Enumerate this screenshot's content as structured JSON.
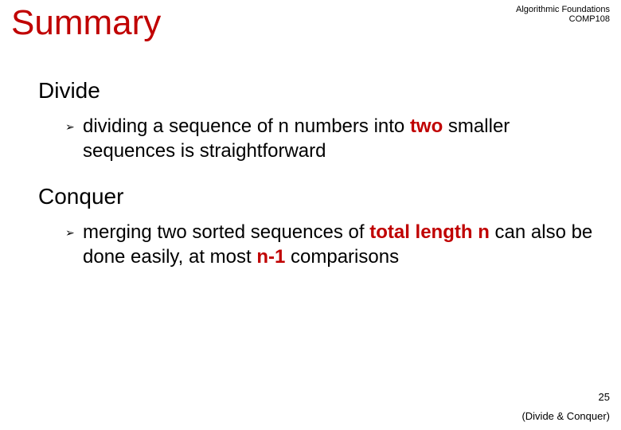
{
  "header": {
    "line1": "Algorithmic Foundations",
    "line2": "COMP108"
  },
  "title": "Summary",
  "sections": [
    {
      "heading": "Divide",
      "bullet": {
        "pre1": "dividing a sequence of n numbers into ",
        "em1": "two",
        "post1": " smaller sequences is straightforward"
      }
    },
    {
      "heading": "Conquer",
      "bullet": {
        "pre1": "merging two sorted sequences of ",
        "em1": "total length n",
        "mid1": " can also be done easily, at most ",
        "em2": "n-1",
        "post1": " comparisons"
      }
    }
  ],
  "pageNumber": "25",
  "footer": "(Divide & Conquer)",
  "colors": {
    "accent": "#c00000",
    "text": "#000000",
    "background": "#ffffff"
  }
}
